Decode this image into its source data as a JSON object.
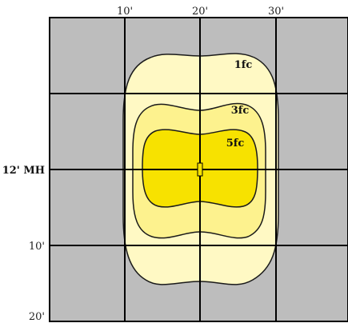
{
  "diagram": {
    "x_ticks": [
      "10'",
      "20'",
      "30'"
    ],
    "y_ticks": [
      "12' MH",
      "10'",
      "20'"
    ],
    "contours": [
      {
        "label": "1fc",
        "color": "#fff9c4"
      },
      {
        "label": "3fc",
        "color": "#fdf28e"
      },
      {
        "label": "5fc",
        "color": "#f7e200"
      }
    ],
    "colors": {
      "background": "#bdbdbd",
      "grid": "#000000",
      "outline": "#1a1a1a"
    }
  }
}
